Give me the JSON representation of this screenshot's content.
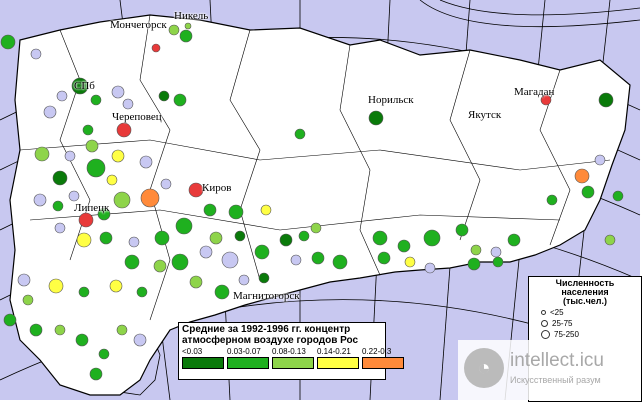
{
  "map": {
    "land_color": "#ffffff",
    "sea_color": "#c8c8f0",
    "border_color": "#000000",
    "graticule_color": "#000000"
  },
  "city_labels": {
    "monchegorsk": "Мончегорск",
    "nikel": "Никель",
    "spb": "СПб",
    "cherepovets": "Череповец",
    "norilsk": "Норильск",
    "yakutsk": "Якутск",
    "magadan": "Магадан",
    "kirov": "Киров",
    "lipetsk": "Липецк",
    "magnitogorsk": "Магнитогорск"
  },
  "legend": {
    "title_line1": "Средние за 1992-1996 гг. концентр",
    "title_line2": "атмосферном воздухе городов Рос",
    "classes": [
      {
        "range": "<0.03",
        "color": "#0a7a0a"
      },
      {
        "range": "0.03-0.07",
        "color": "#1fb01f"
      },
      {
        "range": "0.08-0.13",
        "color": "#8ed44a"
      },
      {
        "range": "0.14-0.21",
        "color": "#ffff44"
      },
      {
        "range": "0.22-0.3",
        "color": "#ff8a3a"
      }
    ]
  },
  "population_legend": {
    "title_line1": "Численность",
    "title_line2": "населения",
    "title_line3": "(тыс.чел.)",
    "rows": [
      "<25",
      "25-75",
      "75-250"
    ]
  },
  "watermark": {
    "name": "intellect.icu",
    "tagline": "Искусственный разум",
    "logo_glyph": "◔"
  },
  "circle_colors": {
    "nodata": "#c8c8f2",
    "c1": "#0a7a0a",
    "c2": "#1fb01f",
    "c3": "#8ed44a",
    "c4": "#ffff44",
    "c5": "#ff8a3a",
    "c6": "#e83a3a"
  }
}
